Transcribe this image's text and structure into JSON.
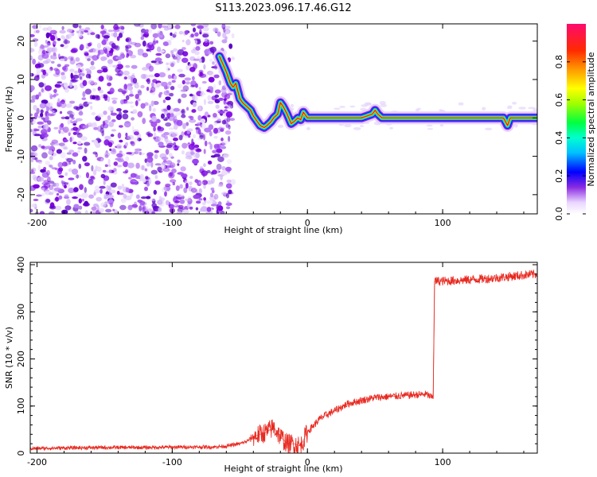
{
  "title": "S113.2023.096.17.46.G12",
  "chart_data": [
    {
      "type": "heatmap",
      "xlabel": "Height of straight line (km)",
      "ylabel": "Frequency (Hz)",
      "xlim": [
        -205,
        170
      ],
      "ylim": [
        -25,
        24.5
      ],
      "x_ticks": [
        "-200",
        "-100",
        "0",
        "100"
      ],
      "x_tick_values": [
        -200,
        -100,
        0,
        100
      ],
      "y_ticks": [
        "-20",
        "-10",
        "0",
        "10",
        "20"
      ],
      "y_tick_values": [
        -20,
        -10,
        0,
        10,
        20
      ],
      "colorbar": {
        "label": "Normalized spectral amplitude",
        "ticks": [
          "0.0",
          "0.2",
          "0.4",
          "0.6",
          "0.8"
        ],
        "tick_values": [
          0.0,
          0.2,
          0.4,
          0.6,
          0.8
        ],
        "range": [
          0,
          1
        ]
      },
      "ridge": {
        "x": [
          -65,
          -60,
          -57,
          -55,
          -53,
          -50,
          -48,
          -45,
          -42,
          -40,
          -37,
          -35,
          -32,
          -30,
          -27,
          -25,
          -22,
          -20,
          -18,
          -15,
          -12,
          -10,
          -7,
          -5,
          -3,
          0,
          5,
          20,
          40,
          48,
          50,
          52,
          55,
          80,
          100,
          140,
          145,
          148,
          150,
          155,
          170
        ],
        "y": [
          16,
          12,
          9,
          8,
          9,
          5,
          4,
          3,
          2,
          0.5,
          -1,
          -2,
          -2.5,
          -2,
          -1,
          0,
          1,
          4,
          3,
          1,
          -1.5,
          -1,
          0,
          -0.5,
          1.5,
          0,
          0,
          0,
          0,
          1,
          2,
          1,
          0,
          0,
          0,
          0,
          0,
          -2,
          0,
          0,
          0
        ]
      }
    },
    {
      "type": "line",
      "xlabel": "Height of straight line (km)",
      "ylabel": "SNR (10 * v/v)",
      "xlim": [
        -205,
        170
      ],
      "ylim": [
        0,
        405
      ],
      "x_ticks": [
        "-200",
        "-100",
        "0",
        "100"
      ],
      "x_tick_values": [
        -200,
        -100,
        0,
        100
      ],
      "y_ticks": [
        "0",
        "100",
        "200",
        "300",
        "400"
      ],
      "y_tick_values": [
        0,
        100,
        200,
        300,
        400
      ],
      "series": [
        {
          "color": "#e8281f",
          "x": [
            -205,
            -180,
            -150,
            -120,
            -90,
            -70,
            -60,
            -50,
            -45,
            -40,
            -35,
            -30,
            -25,
            -20,
            -15,
            -10,
            -5,
            0,
            5,
            10,
            20,
            30,
            40,
            50,
            60,
            70,
            80,
            88,
            92,
            93,
            94,
            100,
            120,
            140,
            160,
            170
          ],
          "y": [
            10,
            11,
            12,
            12,
            13,
            13,
            15,
            20,
            25,
            35,
            40,
            45,
            55,
            35,
            20,
            20,
            15,
            45,
            60,
            75,
            90,
            105,
            112,
            118,
            120,
            122,
            124,
            125,
            118,
            120,
            365,
            365,
            368,
            372,
            378,
            380
          ]
        }
      ]
    }
  ]
}
